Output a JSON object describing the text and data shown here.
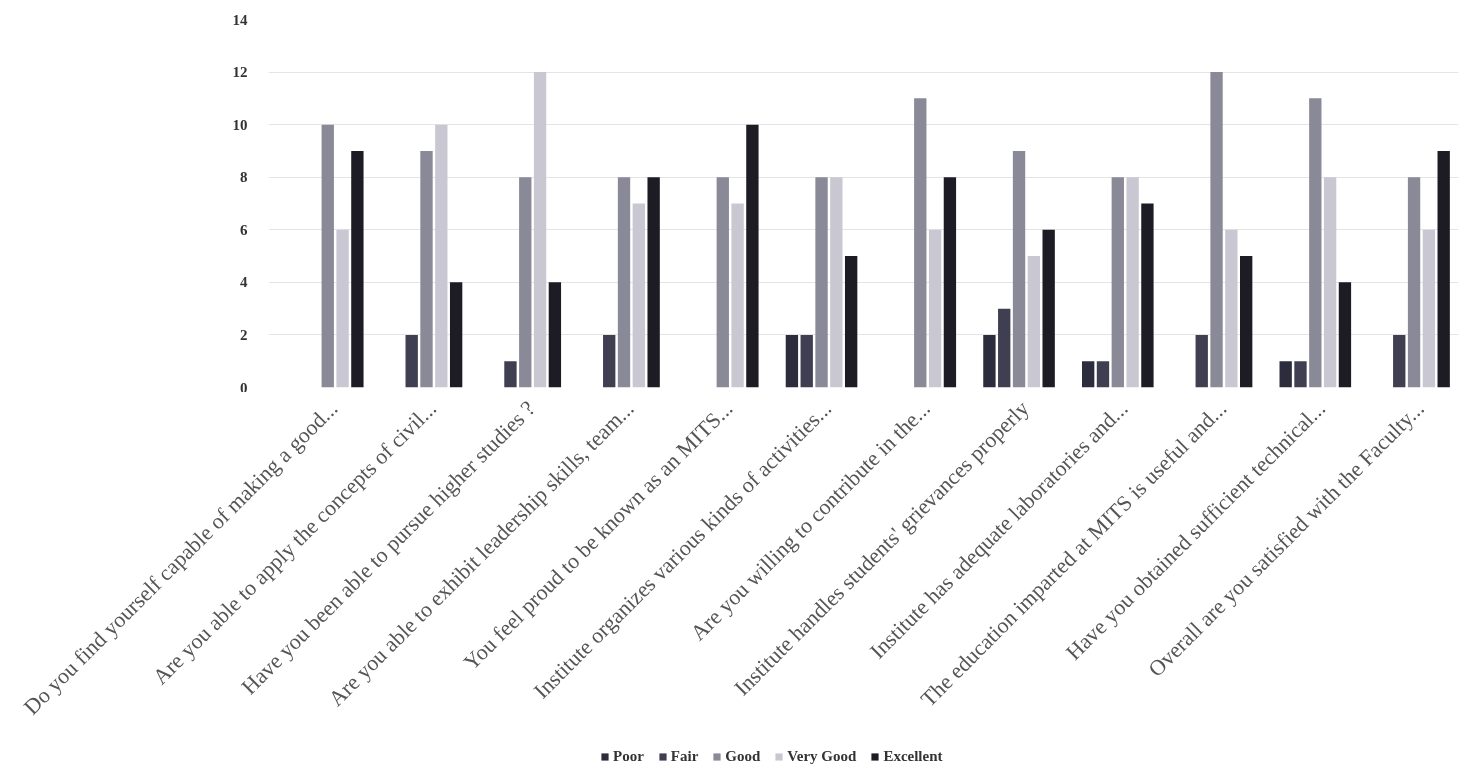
{
  "chart_data": {
    "type": "bar",
    "categories": [
      "Do you find yourself capable of making a good...",
      "Are you able to apply the concepts of civil...",
      "Have you been able to pursue higher studies ?",
      "Are you able to exhibit leadership skills, team...",
      "You feel proud to be known as an MITS...",
      "Institute organizes various kinds of activities...",
      "Are you willing to contribute in the...",
      "Institute handles students' grievances properly",
      "Institute has adequate laboratories and...",
      "The education imparted at MITS is useful and...",
      "Have you obtained sufficient technical...",
      "Overall are you satisfied with the Faculty..."
    ],
    "series": [
      {
        "name": "Poor",
        "color": "#2d2c3c",
        "values": [
          0,
          0,
          0,
          0,
          0,
          2,
          0,
          2,
          1,
          0,
          1,
          0
        ]
      },
      {
        "name": "Fair",
        "color": "#403f52",
        "values": [
          0,
          2,
          1,
          2,
          0,
          2,
          0,
          3,
          1,
          2,
          1,
          2
        ]
      },
      {
        "name": "Good",
        "color": "#8a8997",
        "values": [
          10,
          9,
          8,
          8,
          8,
          8,
          11,
          9,
          8,
          12,
          11,
          8
        ]
      },
      {
        "name": "Very Good",
        "color": "#c9c8d2",
        "values": [
          6,
          10,
          12,
          7,
          7,
          8,
          6,
          5,
          8,
          6,
          8,
          6
        ]
      },
      {
        "name": "Excellent",
        "color": "#1d1c24",
        "values": [
          9,
          4,
          4,
          8,
          10,
          5,
          8,
          6,
          7,
          5,
          4,
          9
        ]
      }
    ],
    "ylim": [
      0,
      14
    ],
    "yticks": [
      0,
      2,
      4,
      6,
      8,
      10,
      12,
      14
    ],
    "grid": "y",
    "legend": "bottom"
  }
}
